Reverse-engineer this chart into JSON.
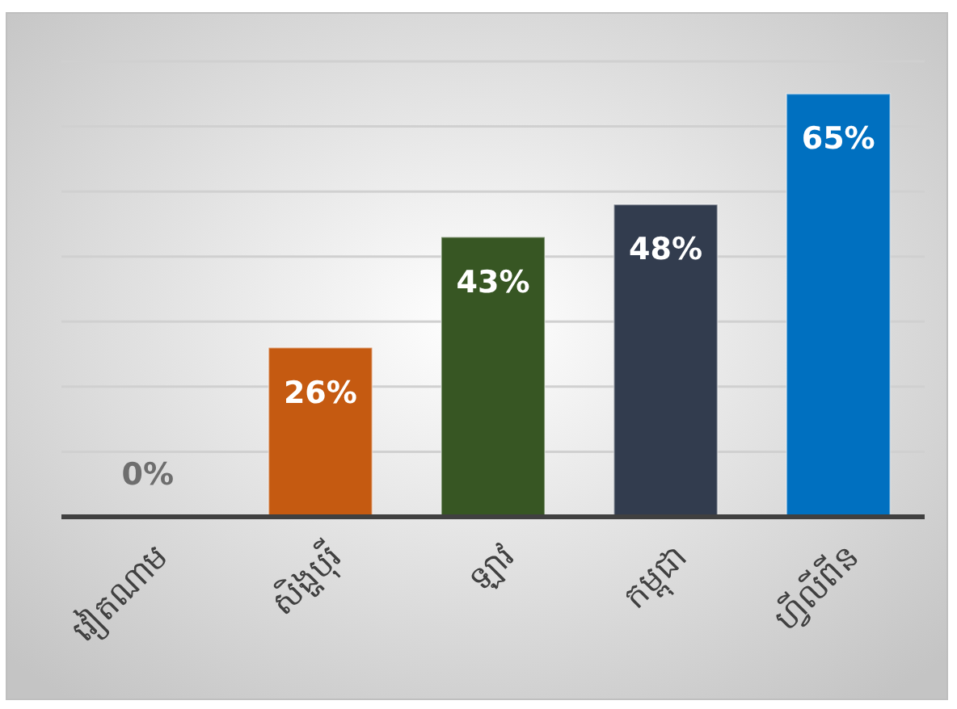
{
  "chart_data": {
    "type": "bar",
    "categories": [
      "វៀតណាម",
      "សិង្ហបុរី",
      "ឡាវ",
      "កម្ពុជា",
      "ហ្វីលីពីន"
    ],
    "values": [
      0,
      26,
      43,
      48,
      65
    ],
    "value_labels": [
      "0%",
      "26%",
      "43%",
      "48%",
      "65%"
    ],
    "colors": [
      "#c55a11",
      "#c55a11",
      "#375623",
      "#323c4e",
      "#0070c0"
    ],
    "ylim": [
      0,
      70
    ],
    "yticks": [
      {
        "value": 10,
        "label": null
      },
      {
        "value": 20,
        "label": null
      },
      {
        "value": 30,
        "label": null
      },
      {
        "value": 40,
        "label": null
      },
      {
        "value": 50,
        "label": null
      },
      {
        "value": 60,
        "label": null
      },
      {
        "value": 70,
        "label": null
      }
    ],
    "grid": "y",
    "tick_labels": "x"
  }
}
